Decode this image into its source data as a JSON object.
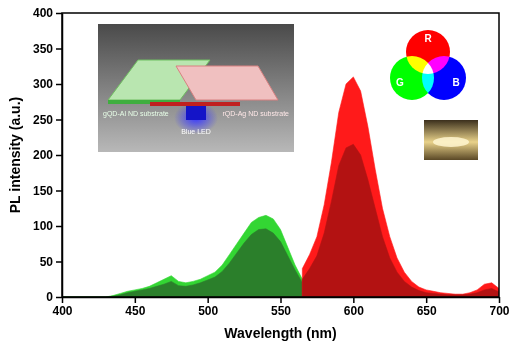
{
  "chart_data": {
    "type": "area",
    "x_label": "Wavelength (nm)",
    "y_label": "PL intensity (a.u.)",
    "x": [
      400,
      405,
      410,
      415,
      420,
      425,
      430,
      435,
      440,
      445,
      450,
      455,
      460,
      465,
      470,
      475,
      480,
      485,
      490,
      495,
      500,
      505,
      510,
      515,
      520,
      525,
      530,
      535,
      540,
      545,
      550,
      555,
      560,
      565,
      570,
      575,
      580,
      585,
      590,
      595,
      600,
      605,
      610,
      615,
      620,
      625,
      630,
      635,
      640,
      645,
      650,
      655,
      660,
      665,
      670,
      675,
      680,
      685,
      690,
      695,
      700
    ],
    "series": [
      {
        "color": "#33d633",
        "values": [
          0,
          0,
          0,
          0,
          0,
          0,
          0,
          2,
          5,
          8,
          10,
          12,
          15,
          20,
          25,
          30,
          22,
          20,
          22,
          25,
          30,
          35,
          45,
          60,
          75,
          90,
          105,
          112,
          115,
          110,
          95,
          70,
          45,
          25,
          null,
          null,
          null,
          null,
          null,
          null,
          null,
          null,
          null,
          null,
          null,
          null,
          null,
          null,
          null,
          null,
          null,
          null,
          null,
          null,
          null,
          null,
          null,
          null,
          null,
          null,
          null
        ]
      },
      {
        "color": "#2b7f2b",
        "values": [
          0,
          0,
          0,
          0,
          0,
          0,
          0,
          1,
          3,
          6,
          8,
          10,
          12,
          15,
          18,
          22,
          16,
          15,
          17,
          20,
          24,
          28,
          36,
          48,
          62,
          76,
          88,
          95,
          96,
          90,
          78,
          58,
          38,
          20,
          null,
          null,
          null,
          null,
          null,
          null,
          null,
          null,
          null,
          null,
          null,
          null,
          null,
          null,
          null,
          null,
          null,
          null,
          null,
          null,
          null,
          null,
          null,
          null,
          null,
          null,
          null
        ]
      },
      {
        "color": "#ff1a1a",
        "values": [
          null,
          null,
          null,
          null,
          null,
          null,
          null,
          null,
          null,
          null,
          null,
          null,
          null,
          null,
          null,
          null,
          null,
          null,
          null,
          null,
          null,
          null,
          null,
          null,
          null,
          null,
          null,
          null,
          null,
          null,
          null,
          null,
          null,
          40,
          60,
          85,
          130,
          190,
          260,
          300,
          310,
          290,
          240,
          180,
          125,
          85,
          55,
          35,
          22,
          14,
          10,
          8,
          6,
          5,
          4,
          4,
          6,
          10,
          18,
          20,
          12
        ]
      },
      {
        "color": "#b31212",
        "values": [
          null,
          null,
          null,
          null,
          null,
          null,
          null,
          null,
          null,
          null,
          null,
          null,
          null,
          null,
          null,
          null,
          null,
          null,
          null,
          null,
          null,
          null,
          null,
          null,
          null,
          null,
          null,
          null,
          null,
          null,
          null,
          null,
          null,
          25,
          40,
          58,
          90,
          135,
          185,
          210,
          215,
          200,
          165,
          125,
          85,
          55,
          35,
          22,
          14,
          9,
          6,
          5,
          4,
          3,
          3,
          3,
          4,
          6,
          10,
          12,
          7
        ]
      }
    ],
    "xlim": [
      400,
      700
    ],
    "xticks": [
      400,
      450,
      500,
      550,
      600,
      650,
      700
    ],
    "ylim": [
      0,
      400
    ],
    "yticks": [
      0,
      50,
      100,
      150,
      200,
      250,
      300,
      350,
      400
    ],
    "annotations": [
      {
        "text": "gQD-Al ND substrate"
      },
      {
        "text": "rQD-Ag ND substrate"
      },
      {
        "text": "Blue LED"
      },
      {
        "text": "R"
      },
      {
        "text": "G"
      },
      {
        "text": "B"
      }
    ]
  }
}
